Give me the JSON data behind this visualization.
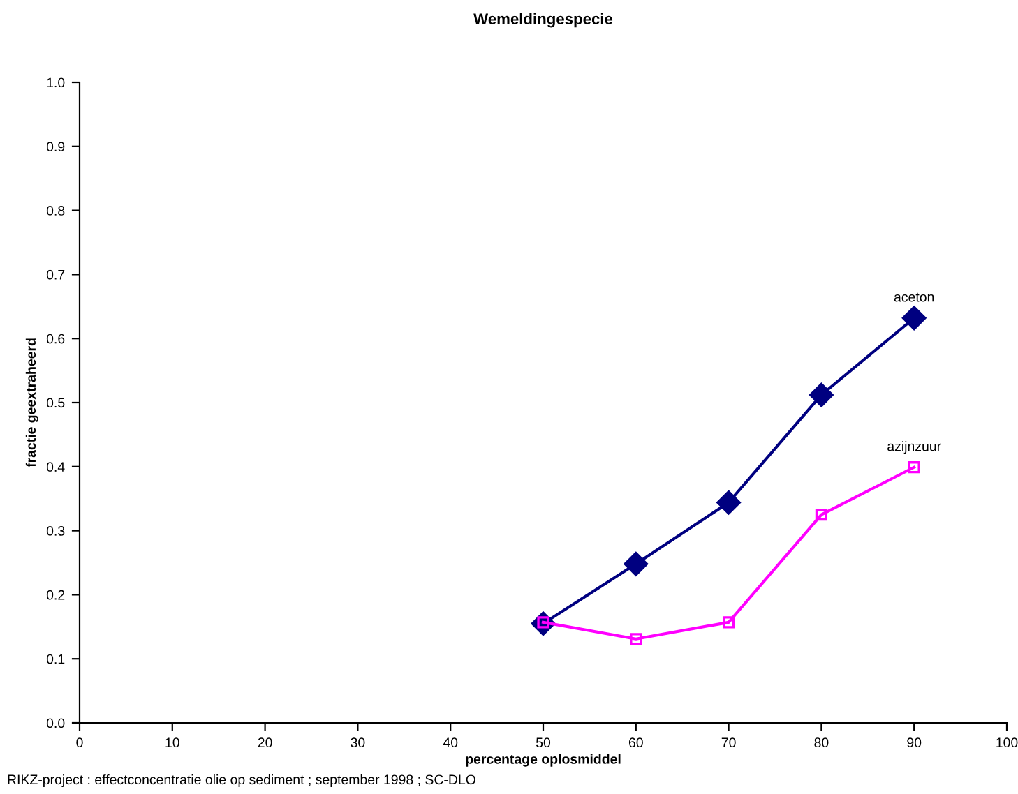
{
  "chart_data": {
    "type": "line",
    "title": "Wemeldingespecie",
    "xlabel": "percentage oplosmiddel",
    "ylabel": "fractie geextraheerd",
    "x": [
      50,
      60,
      70,
      80,
      90
    ],
    "series": [
      {
        "name": "aceton",
        "color": "#000080",
        "marker": "diamond",
        "values": [
          0.155,
          0.248,
          0.344,
          0.512,
          0.632
        ]
      },
      {
        "name": "azijnzuur",
        "color": "#ff00ff",
        "marker": "square",
        "values": [
          0.157,
          0.131,
          0.157,
          0.325,
          0.399
        ]
      }
    ],
    "xlim": [
      0,
      100
    ],
    "xticks": [
      0,
      10,
      20,
      30,
      40,
      50,
      60,
      70,
      80,
      90,
      100
    ],
    "ylim": [
      0,
      1
    ],
    "yticks": [
      {
        "value": 0,
        "label": "0.0"
      },
      0.1,
      0.2,
      0.3,
      0.4,
      0.5,
      0.6,
      0.7,
      0.8,
      0.9,
      {
        "value": 1,
        "label": "1.0"
      }
    ],
    "grid": false,
    "legend": false,
    "line_style": "solid",
    "annotations": [
      "RIKZ-project : effectconcentratie olie op sediment ; september 1998 ; SC-DLO"
    ]
  }
}
